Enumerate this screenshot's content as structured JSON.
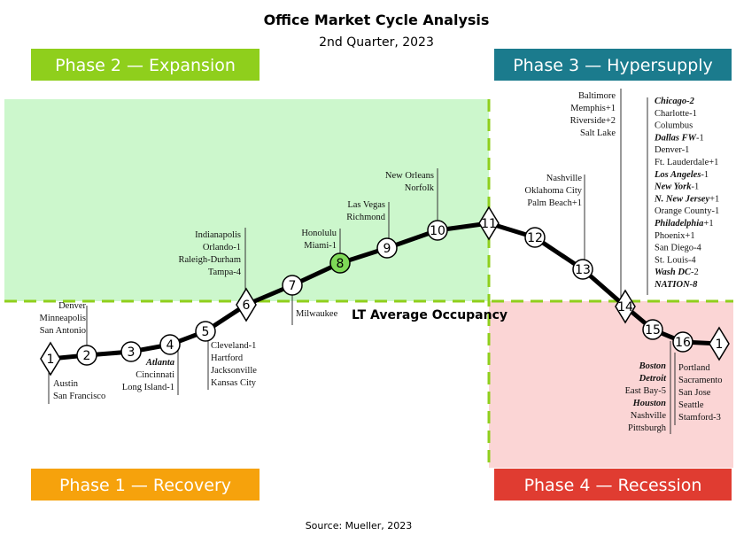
{
  "header": {
    "title": "Office Market Cycle Analysis",
    "subtitle": "2nd Quarter, 2023"
  },
  "phases": [
    {
      "label": "Phase 2 — Expansion",
      "color": "#8fcf1c"
    },
    {
      "label": "Phase 3 — Hypersupply",
      "color": "#1b7b8d"
    },
    {
      "label": "Phase 1 — Recovery",
      "color": "#f6a20c"
    },
    {
      "label": "Phase 4 — Recession",
      "color": "#e03c31"
    }
  ],
  "occupancy_label": "LT Average Occupancy",
  "nodes": [
    {
      "label": "1"
    },
    {
      "label": "2"
    },
    {
      "label": "3"
    },
    {
      "label": "4"
    },
    {
      "label": "5"
    },
    {
      "label": "6"
    },
    {
      "label": "7"
    },
    {
      "label": "8"
    },
    {
      "label": "9"
    },
    {
      "label": "10"
    },
    {
      "label": "11"
    },
    {
      "label": "12"
    },
    {
      "label": "13"
    },
    {
      "label": "14"
    },
    {
      "label": "15"
    },
    {
      "label": "16"
    },
    {
      "label": "1"
    }
  ],
  "label_groups": [
    {
      "items": [
        {
          "text": "Denver"
        },
        {
          "text": "Minneapolis"
        },
        {
          "text": "San Antonio"
        }
      ]
    },
    {
      "items": [
        {
          "text": "Austin"
        },
        {
          "text": "San Francisco"
        }
      ]
    },
    {
      "items": [
        {
          "text": "Atlanta",
          "emphasis": true
        },
        {
          "text": "Cincinnati"
        },
        {
          "text": "Long Island-1"
        }
      ]
    },
    {
      "items": [
        {
          "text": "Cleveland-1"
        },
        {
          "text": "Hartford"
        },
        {
          "text": "Jacksonville"
        },
        {
          "text": "Kansas City"
        }
      ]
    },
    {
      "items": [
        {
          "text": "Indianapolis"
        },
        {
          "text": "Orlando-1"
        },
        {
          "text": "Raleigh-Durham"
        },
        {
          "text": "Tampa-4"
        }
      ]
    },
    {
      "items": [
        {
          "text": "Milwaukee"
        }
      ]
    },
    {
      "items": [
        {
          "text": "Honolulu"
        },
        {
          "text": "Miami-1"
        }
      ]
    },
    {
      "items": [
        {
          "text": "Las Vegas"
        },
        {
          "text": "Richmond"
        }
      ]
    },
    {
      "items": [
        {
          "text": "New Orleans"
        },
        {
          "text": "Norfolk"
        }
      ]
    },
    {
      "items": [
        {
          "text": "Nashville"
        },
        {
          "text": "Oklahoma City"
        },
        {
          "text": "Palm Beach+1"
        }
      ]
    },
    {
      "items": [
        {
          "text": "Baltimore"
        },
        {
          "text": "Memphis+1"
        },
        {
          "text": "Riverside+2"
        },
        {
          "text": "Salt Lake"
        }
      ]
    },
    {
      "items": [
        {
          "text": "Chicago-2",
          "emphasis": true
        },
        {
          "text": "Charlotte-1"
        },
        {
          "text": "Columbus"
        },
        {
          "text": "Dallas FW",
          "emphasis": true,
          "suffix": "-1"
        },
        {
          "text": "Denver-1"
        },
        {
          "text": "Ft. Lauderdale+1"
        },
        {
          "text": "Los Angeles",
          "emphasis": true,
          "suffix": "-1"
        },
        {
          "text": "New York",
          "emphasis": true,
          "suffix": "-1"
        },
        {
          "text": "N. New Jersey",
          "emphasis": true,
          "suffix": "+1"
        },
        {
          "text": "Orange County-1"
        },
        {
          "text": "Philadelphia",
          "emphasis": true,
          "suffix": "+1"
        },
        {
          "text": "Phoenix+1"
        },
        {
          "text": "San Diego-4"
        },
        {
          "text": "St. Louis-4"
        },
        {
          "text": "Wash DC",
          "emphasis": true,
          "suffix": "-2"
        },
        {
          "text": "NATION-8",
          "emphasis": true
        }
      ]
    },
    {
      "items": [
        {
          "text": "Boston",
          "emphasis": true
        },
        {
          "text": "Detroit",
          "emphasis": true
        },
        {
          "text": "East Bay-5"
        },
        {
          "text": "Houston",
          "emphasis": true
        },
        {
          "text": "Nashville"
        },
        {
          "text": "Pittsburgh"
        }
      ]
    },
    {
      "items": [
        {
          "text": "Portland"
        },
        {
          "text": "Sacramento"
        },
        {
          "text": "San Jose"
        },
        {
          "text": "Seattle"
        },
        {
          "text": "Stamford-3"
        }
      ]
    }
  ],
  "source": "Source: Mueller, 2023"
}
